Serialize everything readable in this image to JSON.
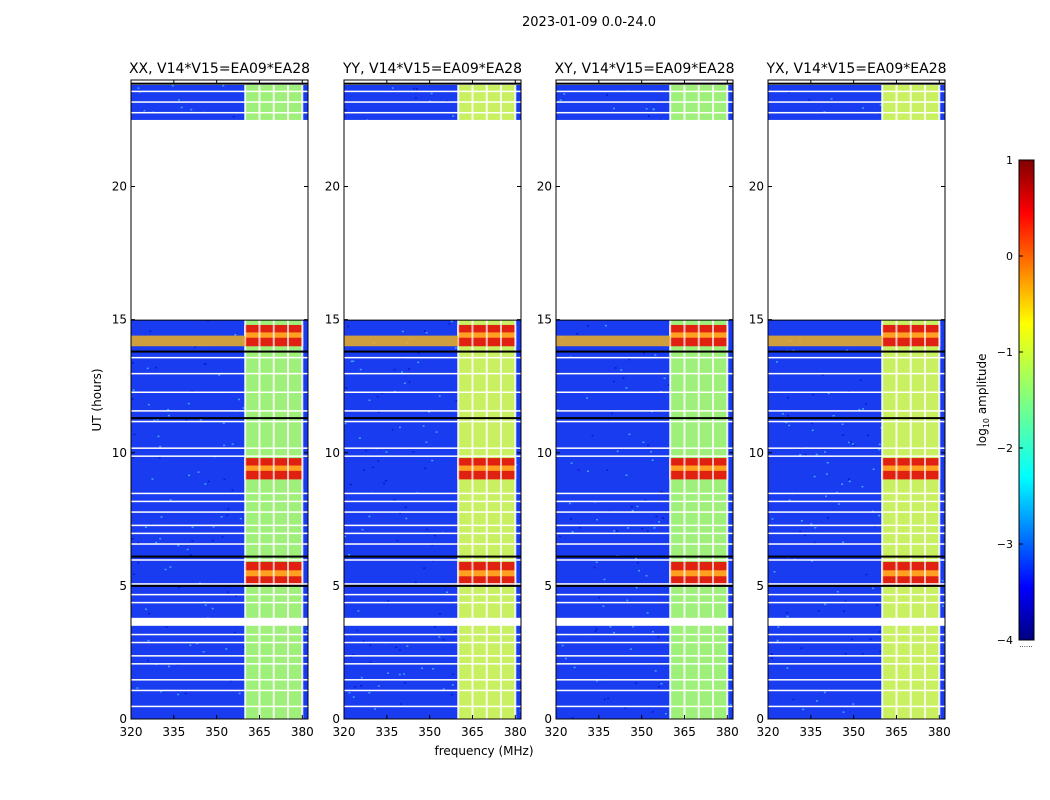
{
  "figure": {
    "suptitle": "2023-01-09 0.0-24.0",
    "xlabel": "frequency (MHz)",
    "ylabel": "UT (hours)"
  },
  "chart_data": {
    "type": "heatmap",
    "title": "2023-01-09 0.0-24.0",
    "x_range": [
      320,
      382
    ],
    "y_range": [
      0,
      24
    ],
    "x_ticks": [
      320,
      335,
      350,
      365,
      380
    ],
    "y_ticks": [
      0,
      5,
      10,
      15,
      20
    ],
    "x_tick_labels": [
      "320",
      "335",
      "350",
      "365",
      "380"
    ],
    "y_tick_labels": [
      "0",
      "5",
      "10",
      "15",
      "20"
    ],
    "panels": [
      {
        "title": "XX, V14*V15=EA09*EA28",
        "polarization": "XX"
      },
      {
        "title": "YY, V14*V15=EA09*EA28",
        "polarization": "YY"
      },
      {
        "title": "XY, V14*V15=EA09*EA28",
        "polarization": "XY"
      },
      {
        "title": "YX, V14*V15=EA09*EA28",
        "polarization": "YX"
      }
    ],
    "colorbar": {
      "label": "log10 amplitude",
      "label_text": "log",
      "label_sub": "10",
      "label_rest": " amplitude",
      "colormap": "jet",
      "range": [
        -4,
        1
      ],
      "ticks": [
        1,
        0,
        -1,
        -2,
        -3,
        -4
      ],
      "tick_labels": [
        "1",
        "0",
        "−1",
        "−2",
        "−3",
        "−4"
      ],
      "below_text": "......"
    },
    "data_gaps_hours": [
      [
        15.0,
        22.5
      ],
      [
        3.5,
        3.8
      ]
    ],
    "band_features": {
      "strong_band_mhz": [
        360,
        380
      ],
      "bright_hours": [
        [
          14.0,
          14.8
        ],
        [
          9.0,
          9.8
        ],
        [
          5.0,
          5.9
        ]
      ]
    }
  }
}
